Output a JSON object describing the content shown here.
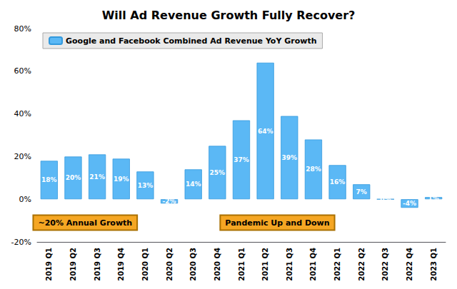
{
  "chart_data": {
    "type": "bar",
    "title": "Will Ad Revenue Growth Fully Recover?",
    "categories": [
      "2019 Q1",
      "2019 Q2",
      "2019 Q3",
      "2019 Q4",
      "2020 Q1",
      "2020 Q2",
      "2020 Q3",
      "2020 Q4",
      "2021 Q1",
      "2021 Q2",
      "2021 Q3",
      "2021 Q4",
      "2022 Q1",
      "2022 Q2",
      "2022 Q3",
      "2022 Q4",
      "2023 Q1"
    ],
    "series": [
      {
        "name": "Google and Facebook Combined Ad Revenue YoY Growth",
        "color": "#5BB8F5",
        "values": [
          18,
          20,
          21,
          19,
          13,
          -2,
          14,
          25,
          37,
          64,
          39,
          28,
          16,
          7,
          0,
          -4,
          1
        ],
        "value_labels": [
          "18%",
          "20%",
          "21%",
          "19%",
          "13%",
          "-2%",
          "14%",
          "25%",
          "37%",
          "64%",
          "39%",
          "28%",
          "16%",
          "7%",
          "0%",
          "-4%",
          "1%"
        ]
      }
    ],
    "ylim": [
      -20,
      80
    ],
    "yticks": [
      {
        "value": -20,
        "label": "-20%"
      },
      {
        "value": 0,
        "label": "0%"
      },
      {
        "value": 20,
        "label": "20%"
      },
      {
        "value": 40,
        "label": "40%"
      },
      {
        "value": 60,
        "label": "60%"
      },
      {
        "value": 80,
        "label": "80%"
      }
    ],
    "grid": false,
    "legend": "upper left",
    "data_labels": true,
    "annotations": [
      {
        "text": "~20% Annual Growth",
        "x": 1.5,
        "y": -11
      },
      {
        "text": "Pandemic Up and Down",
        "x": 9.5,
        "y": -11
      }
    ]
  }
}
